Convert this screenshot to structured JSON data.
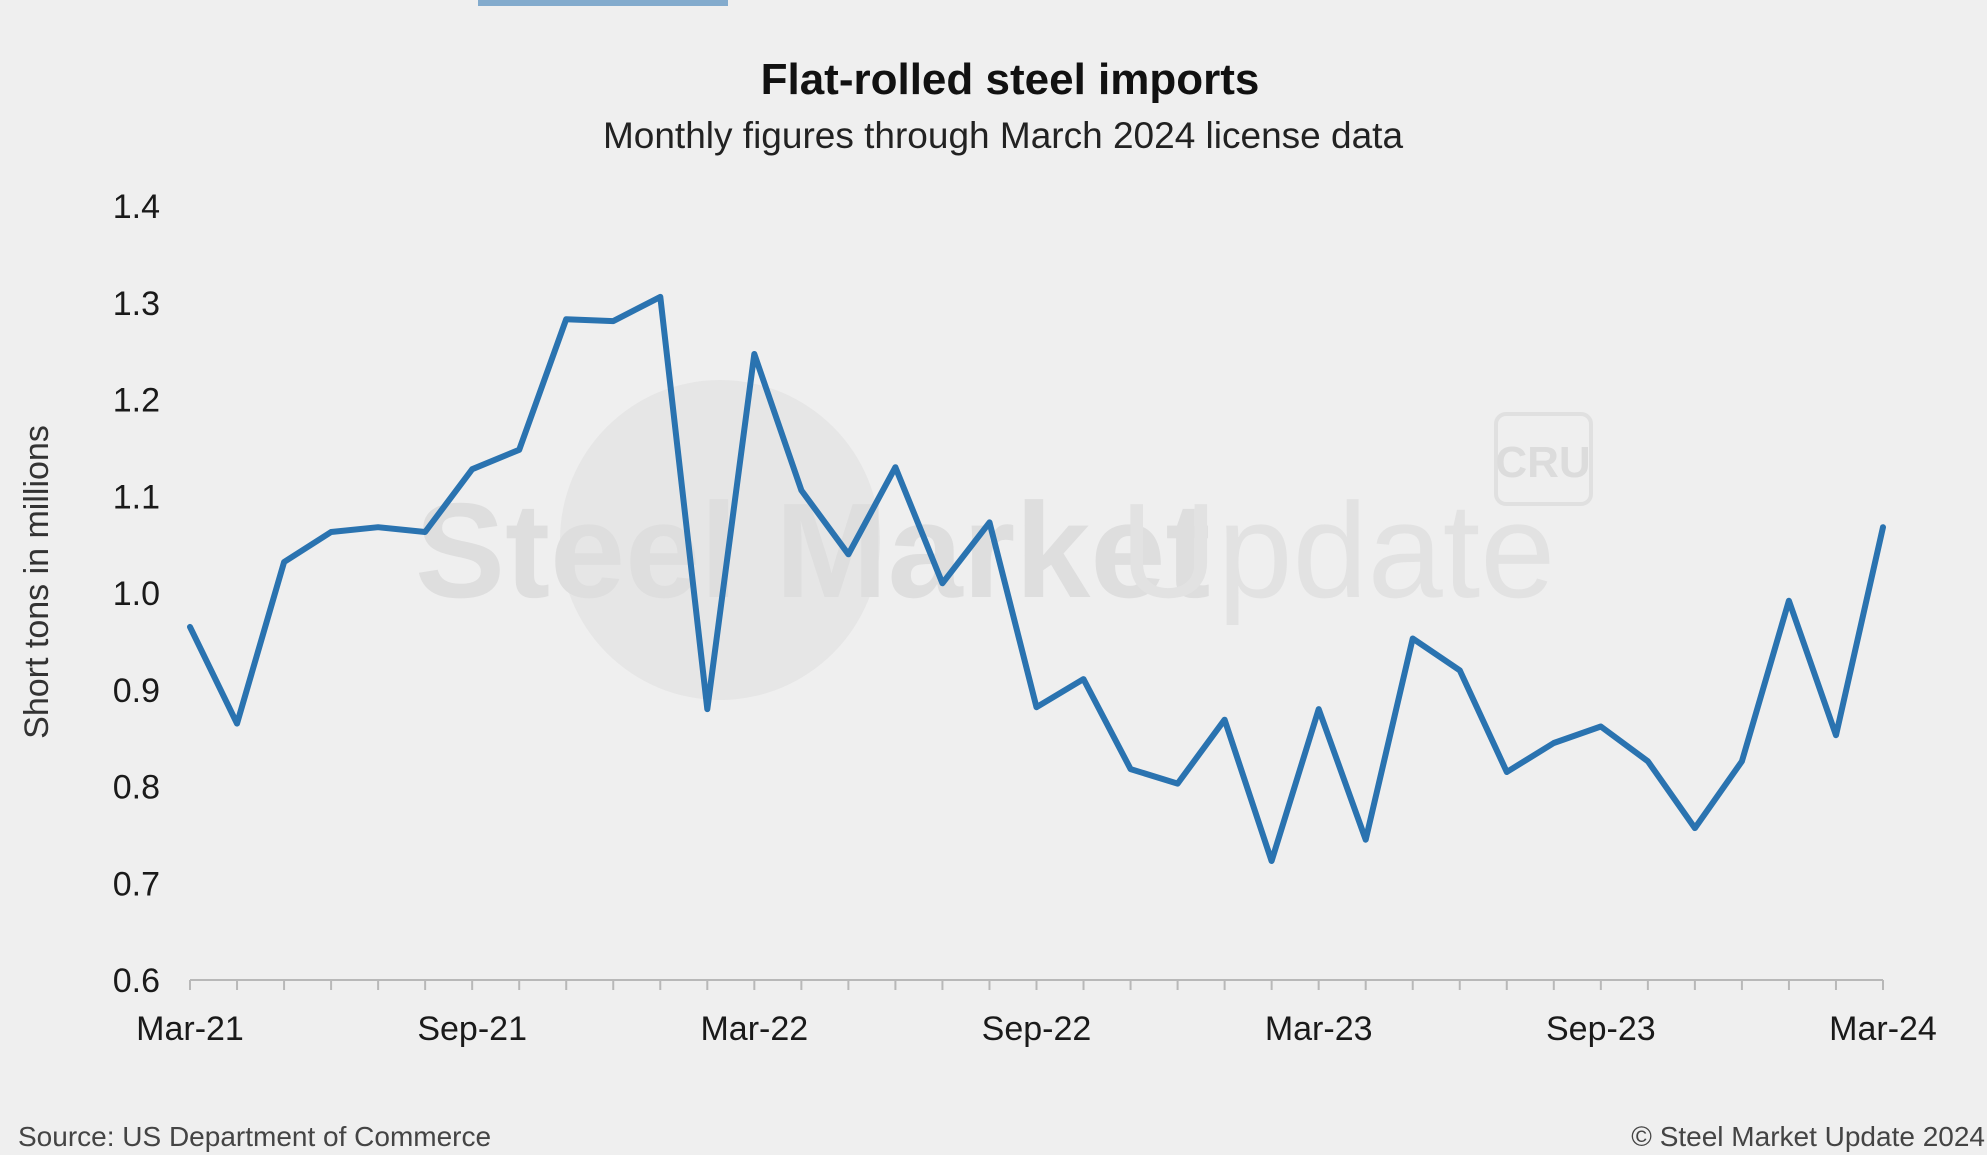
{
  "chart_data": {
    "type": "line",
    "title": "Flat-rolled steel imports",
    "subtitle": "Monthly figures through March 2024 license data",
    "ylabel": "Short tons in millions",
    "xlabel": "",
    "ylim": [
      0.6,
      1.4
    ],
    "yticks": [
      "0.6",
      "0.7",
      "0.8",
      "0.9",
      "1.0",
      "1.1",
      "1.2",
      "1.3",
      "1.4"
    ],
    "xtick_labels": [
      "Mar-21",
      "Sep-21",
      "Mar-22",
      "Sep-22",
      "Mar-23",
      "Sep-23",
      "Mar-24"
    ],
    "grid": false,
    "line_color": "#2a73b0",
    "series": [
      {
        "values": [
          0.965,
          0.865,
          1.032,
          1.063,
          1.068,
          1.063,
          1.128,
          1.148,
          1.283,
          1.281,
          1.306,
          0.88,
          1.247,
          1.106,
          1.04,
          1.13,
          1.01,
          1.073,
          0.882,
          0.911,
          0.818,
          0.803,
          0.869,
          0.723,
          0.88,
          0.745,
          0.953,
          0.92,
          0.815,
          0.845,
          0.862,
          0.826,
          0.757,
          0.826,
          0.992,
          0.853,
          1.068
        ]
      }
    ]
  },
  "watermark": {
    "wordmark_bold": "Steel Market",
    "wordmark_light": "Update",
    "badge": "CRU"
  },
  "footer": {
    "source": "Source: US Department of Commerce",
    "copyright": "© Steel Market Update 2024"
  },
  "header_fragment": "(?) ...p..."
}
